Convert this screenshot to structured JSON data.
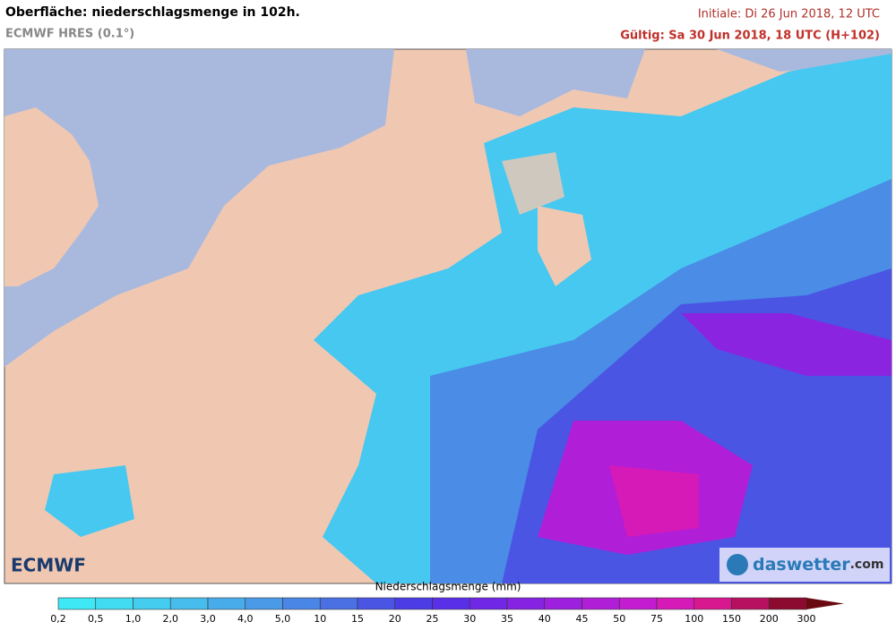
{
  "header": {
    "title": "Oberfläche: niederschlagsmenge in 102h.",
    "subtitle": "ECMWF HRES (0.1°)",
    "initial": "Initiale: Di 26 Jun 2018, 12 UTC",
    "valid": "Gültig: Sa 30 Jun 2018, 18 UTC (H+102)"
  },
  "logos": {
    "left": "ECMWF",
    "right_name": "daswetter",
    "right_suffix": ".com"
  },
  "colorbar": {
    "label": "Niederschlagsmenge (mm)",
    "ticks": [
      "0,2",
      "0,5",
      "1,0",
      "2,0",
      "3,0",
      "4,0",
      "5,0",
      "10",
      "15",
      "20",
      "25",
      "30",
      "35",
      "40",
      "45",
      "50",
      "75",
      "100",
      "150",
      "200",
      "300"
    ],
    "colors": [
      "#3ee8f5",
      "#41dcf2",
      "#44cdef",
      "#46bdec",
      "#48acea",
      "#4a9ae8",
      "#4a86e6",
      "#4a70e4",
      "#4a55e4",
      "#4b3ce6",
      "#5a2fe8",
      "#7028e6",
      "#8623e2",
      "#9c20de",
      "#b01ed8",
      "#c41cd0",
      "#d51ab8",
      "#d8188e",
      "#b81060",
      "#8c0a30",
      "#6a0a10"
    ]
  }
}
